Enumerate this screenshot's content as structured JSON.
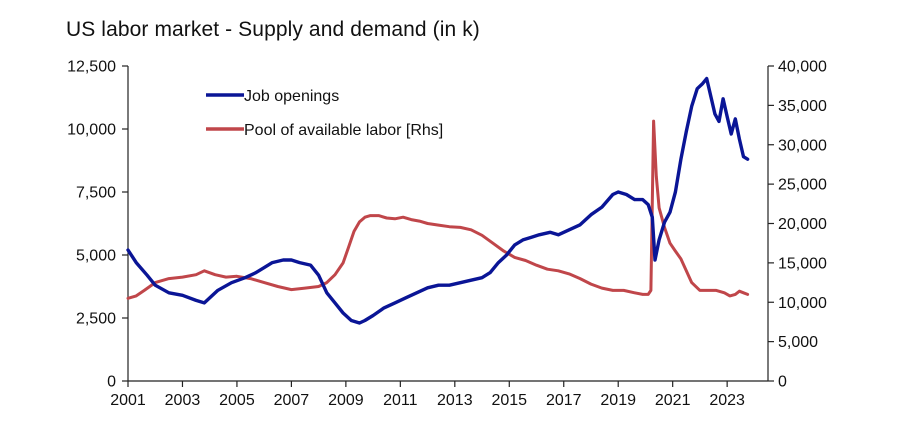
{
  "chart_data": {
    "type": "line",
    "title": "US labor market - Supply and demand (in k)",
    "x_ticks": [
      "2001",
      "2003",
      "2005",
      "2007",
      "2009",
      "2011",
      "2013",
      "2015",
      "2017",
      "2019",
      "2021",
      "2023"
    ],
    "xlim": [
      2001,
      2024.5
    ],
    "y_left": {
      "lim": [
        0,
        12500
      ],
      "ticks": [
        "0",
        "2,500",
        "5,000",
        "7,500",
        "10,000",
        "12,500"
      ]
    },
    "y_right": {
      "lim": [
        0,
        40000
      ],
      "ticks": [
        "0",
        "5,000",
        "10,000",
        "15,000",
        "20,000",
        "25,000",
        "30,000",
        "35,000",
        "40,000"
      ]
    },
    "grid": false,
    "legend_position": "top-left",
    "series": [
      {
        "name": "Job openings",
        "axis": "left",
        "color": "#0a1596",
        "x": [
          2001.0,
          2001.3,
          2001.7,
          2002.0,
          2002.5,
          2003.0,
          2003.5,
          2003.8,
          2004.3,
          2004.8,
          2005.3,
          2005.7,
          2006.0,
          2006.3,
          2006.7,
          2007.0,
          2007.3,
          2007.7,
          2008.0,
          2008.3,
          2008.6,
          2008.9,
          2009.2,
          2009.5,
          2009.7,
          2010.0,
          2010.4,
          2010.8,
          2011.2,
          2011.6,
          2012.0,
          2012.4,
          2012.8,
          2013.2,
          2013.6,
          2014.0,
          2014.3,
          2014.6,
          2014.9,
          2015.2,
          2015.5,
          2015.8,
          2016.1,
          2016.5,
          2016.8,
          2017.2,
          2017.6,
          2018.0,
          2018.4,
          2018.8,
          2019.0,
          2019.3,
          2019.6,
          2019.9,
          2020.1,
          2020.25,
          2020.35,
          2020.5,
          2020.7,
          2020.9,
          2021.1,
          2021.3,
          2021.5,
          2021.7,
          2021.9,
          2022.1,
          2022.25,
          2022.4,
          2022.55,
          2022.7,
          2022.85,
          2023.0,
          2023.15,
          2023.3,
          2023.45,
          2023.6,
          2023.75
        ],
        "values": [
          5200,
          4700,
          4200,
          3800,
          3500,
          3400,
          3200,
          3100,
          3600,
          3900,
          4100,
          4300,
          4500,
          4700,
          4800,
          4800,
          4700,
          4600,
          4200,
          3500,
          3100,
          2700,
          2400,
          2300,
          2400,
          2600,
          2900,
          3100,
          3300,
          3500,
          3700,
          3800,
          3800,
          3900,
          4000,
          4100,
          4300,
          4700,
          5000,
          5400,
          5600,
          5700,
          5800,
          5900,
          5800,
          6000,
          6200,
          6600,
          6900,
          7400,
          7500,
          7400,
          7200,
          7200,
          7000,
          6500,
          4800,
          5600,
          6300,
          6700,
          7500,
          8800,
          9900,
          10900,
          11600,
          11800,
          12000,
          11300,
          10600,
          10300,
          11200,
          10500,
          9800,
          10400,
          9600,
          8900,
          8800
        ]
      },
      {
        "name": "Pool of available labor [Rhs]",
        "axis": "right",
        "color": "#c0464a",
        "x": [
          2001.0,
          2001.3,
          2001.6,
          2002.0,
          2002.5,
          2003.0,
          2003.5,
          2003.8,
          2004.2,
          2004.6,
          2005.0,
          2005.5,
          2006.0,
          2006.5,
          2007.0,
          2007.5,
          2008.0,
          2008.3,
          2008.6,
          2008.9,
          2009.1,
          2009.3,
          2009.5,
          2009.7,
          2009.9,
          2010.2,
          2010.5,
          2010.8,
          2011.1,
          2011.4,
          2011.7,
          2012.0,
          2012.4,
          2012.8,
          2013.2,
          2013.6,
          2014.0,
          2014.4,
          2014.8,
          2015.2,
          2015.6,
          2016.0,
          2016.4,
          2016.8,
          2017.2,
          2017.6,
          2018.0,
          2018.4,
          2018.8,
          2019.2,
          2019.6,
          2019.9,
          2020.1,
          2020.2,
          2020.3,
          2020.4,
          2020.5,
          2020.7,
          2020.9,
          2021.1,
          2021.3,
          2021.5,
          2021.7,
          2022.0,
          2022.3,
          2022.6,
          2022.9,
          2023.1,
          2023.3,
          2023.45,
          2023.6,
          2023.75
        ],
        "values": [
          10500,
          10800,
          11500,
          12500,
          13000,
          13200,
          13500,
          14000,
          13500,
          13200,
          13300,
          13000,
          12500,
          12000,
          11600,
          11800,
          12000,
          12500,
          13500,
          15000,
          17000,
          19000,
          20200,
          20800,
          21000,
          21000,
          20700,
          20600,
          20800,
          20500,
          20300,
          20000,
          19800,
          19600,
          19500,
          19200,
          18500,
          17500,
          16500,
          15700,
          15300,
          14700,
          14200,
          14000,
          13600,
          13000,
          12300,
          11800,
          11500,
          11500,
          11200,
          11000,
          11000,
          11500,
          33000,
          26000,
          22000,
          19500,
          17500,
          16500,
          15500,
          14000,
          12500,
          11500,
          11500,
          11500,
          11200,
          10800,
          11000,
          11400,
          11200,
          11000
        ]
      }
    ]
  }
}
